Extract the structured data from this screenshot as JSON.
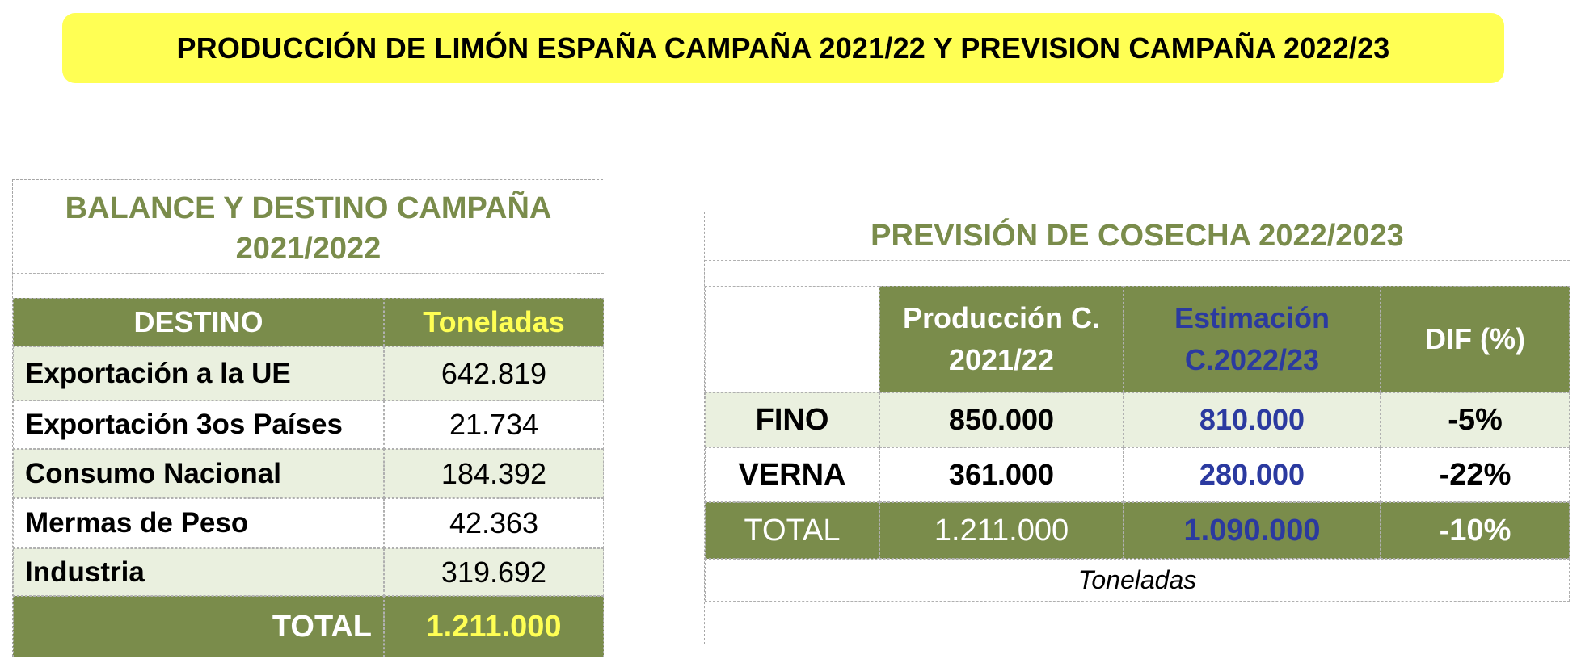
{
  "banner": {
    "title": "PRODUCCIÓN DE LIMÓN ESPAÑA CAMPAÑA 2021/22 Y PREVISION CAMPAÑA 2022/23"
  },
  "balance": {
    "title_line1": "BALANCE Y DESTINO CAMPAÑA",
    "title_line2": "2021/2022",
    "col_destino": "DESTINO",
    "col_toneladas": "Toneladas",
    "rows": [
      {
        "label": "Exportación a la UE",
        "value": "642.819"
      },
      {
        "label": "Exportación 3os Países",
        "value": "21.734"
      },
      {
        "label": "Consumo Nacional",
        "value": "184.392"
      },
      {
        "label": "Mermas de Peso",
        "value": "42.363"
      },
      {
        "label": "Industria",
        "value": "319.692"
      }
    ],
    "total_label": "TOTAL",
    "total_value": "1.211.000"
  },
  "prevision": {
    "title": "PREVISIÓN DE COSECHA 2022/2023",
    "col_prod_line1": "Producción C.",
    "col_prod_line2": "2021/22",
    "col_est_line1": "Estimación",
    "col_est_line2": "C.2022/23",
    "col_dif": "DIF (%)",
    "rows": [
      {
        "label": "FINO",
        "prod": "850.000",
        "est": "810.000",
        "dif": "-5%"
      },
      {
        "label": "VERNA",
        "prod": "361.000",
        "est": "280.000",
        "dif": "-22%"
      }
    ],
    "total": {
      "label": "TOTAL",
      "prod": "1.211.000",
      "est": "1.090.000",
      "dif": "-10%"
    },
    "unit_note": "Toneladas"
  },
  "colors": {
    "banner": "#ffff54",
    "olive": "#7a8c4b",
    "pale_green": "#eaf0df",
    "blue": "#2b3aa0"
  }
}
